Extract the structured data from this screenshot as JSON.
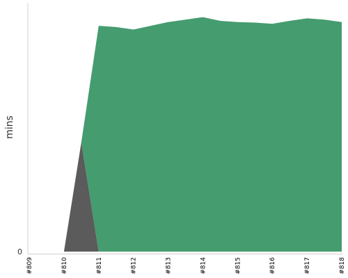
{
  "chart_data": {
    "type": "area",
    "stacked": true,
    "xlabel": "",
    "ylabel": "mins",
    "categories": [
      "#809",
      "#810",
      "#811",
      "#812",
      "#813",
      "#814",
      "#815",
      "#816",
      "#817",
      "#818"
    ],
    "x": [
      0,
      1,
      1.5,
      2,
      2.5,
      3,
      3.5,
      4,
      4.5,
      5,
      5.5,
      6,
      6.5,
      7,
      7.5,
      8,
      8.5,
      9
    ],
    "y_ticks": [
      {
        "value": 0,
        "label": "0"
      }
    ],
    "ylim": [
      0,
      1
    ],
    "grid": false,
    "legend": "none",
    "series": [
      {
        "color": "#5b5b5b",
        "values": [
          0,
          0,
          0.44,
          0,
          0,
          0,
          0,
          0,
          0,
          0,
          0,
          0,
          0,
          0,
          0,
          0,
          0,
          0
        ]
      },
      {
        "color": "#459c6e",
        "values": [
          0,
          0,
          0,
          0.91,
          0.905,
          0.895,
          0.91,
          0.925,
          0.935,
          0.945,
          0.93,
          0.925,
          0.923,
          0.918,
          0.93,
          0.94,
          0.935,
          0.925
        ]
      }
    ]
  }
}
